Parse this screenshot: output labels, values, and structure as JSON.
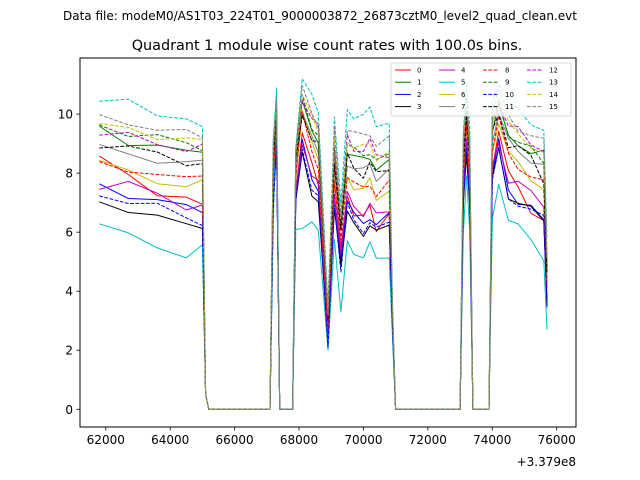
{
  "suptitle": "Data file: modeM0/AS1T03_224T01_9000003872_26873cztM0_level2_quad_clean.evt",
  "chart_data": {
    "type": "line",
    "title": "Quadrant 1 module wise count rates with 100.0s bins.",
    "xlabel": "",
    "ylabel": "",
    "x_offset_label": "+3.379e8",
    "xlim": [
      61200,
      76600
    ],
    "ylim": [
      -0.6,
      11.9
    ],
    "xticks": [
      62000,
      64000,
      66000,
      68000,
      70000,
      72000,
      74000,
      76000
    ],
    "xtick_labels": [
      "62000",
      "64000",
      "66000",
      "68000",
      "70000",
      "72000",
      "74000",
      "76000"
    ],
    "yticks": [
      0,
      2,
      4,
      6,
      8,
      10
    ],
    "ytick_labels": [
      "0",
      "2",
      "4",
      "6",
      "8",
      "10"
    ],
    "x": [
      61800,
      62700,
      63600,
      64500,
      65000,
      65100,
      65200,
      67100,
      67200,
      67300,
      67400,
      67500,
      67800,
      67900,
      68100,
      68400,
      68600,
      68900,
      69100,
      69300,
      69500,
      69700,
      70000,
      70200,
      70400,
      70800,
      70900,
      71000,
      73000,
      73100,
      73200,
      73300,
      73400,
      73500,
      73900,
      74000,
      74200,
      74500,
      74800,
      75200,
      75600,
      75700
    ],
    "series": [
      {
        "name": "0",
        "color": "#ff0000",
        "dash": "solid",
        "values": [
          8.4,
          8.0,
          7.4,
          7.1,
          6.8,
          0.5,
          0.0,
          0.0,
          7.5,
          9.7,
          0.0,
          0.0,
          0.0,
          7.5,
          9.3,
          8.2,
          7.7,
          2.6,
          7.6,
          5.4,
          7.4,
          6.6,
          6.4,
          6.9,
          6.2,
          6.6,
          3.0,
          0.0,
          0.0,
          7.6,
          9.6,
          7.5,
          0.0,
          0.0,
          0.0,
          8.3,
          9.4,
          7.9,
          7.6,
          6.8,
          6.3,
          3.8
        ]
      },
      {
        "name": "1",
        "color": "#008000",
        "dash": "solid",
        "values": [
          9.5,
          9.1,
          9.0,
          8.6,
          8.7,
          0.5,
          0.0,
          0.0,
          8.5,
          10.3,
          0.0,
          0.0,
          0.0,
          8.6,
          10.3,
          9.4,
          9.2,
          3.2,
          8.7,
          6.2,
          8.8,
          8.5,
          8.4,
          8.6,
          8.2,
          8.3,
          3.4,
          0.0,
          0.0,
          8.6,
          10.1,
          8.6,
          0.0,
          0.0,
          0.0,
          9.5,
          10.2,
          9.2,
          9.1,
          8.7,
          8.6,
          4.8
        ]
      },
      {
        "name": "2",
        "color": "#0000ff",
        "dash": "solid",
        "values": [
          7.7,
          7.3,
          7.0,
          6.8,
          6.8,
          0.5,
          0.0,
          0.0,
          7.1,
          9.2,
          0.0,
          0.0,
          0.0,
          7.2,
          9.0,
          7.9,
          7.5,
          2.2,
          7.2,
          5.2,
          7.1,
          6.5,
          6.3,
          6.6,
          6.2,
          6.5,
          2.9,
          0.0,
          0.0,
          7.3,
          9.2,
          7.1,
          0.0,
          0.0,
          0.0,
          7.9,
          9.0,
          7.5,
          7.1,
          6.8,
          6.3,
          3.6
        ]
      },
      {
        "name": "3",
        "color": "#000000",
        "dash": "solid",
        "values": [
          7.2,
          6.7,
          6.4,
          6.3,
          6.3,
          0.5,
          0.0,
          0.0,
          6.9,
          8.9,
          0.0,
          0.0,
          0.0,
          6.9,
          8.7,
          7.4,
          7.0,
          2.4,
          6.9,
          5.0,
          6.6,
          6.2,
          6.0,
          6.3,
          5.9,
          6.2,
          2.8,
          0.0,
          0.0,
          7.0,
          8.8,
          6.8,
          0.0,
          0.0,
          0.0,
          7.7,
          8.8,
          7.3,
          7.0,
          6.7,
          6.4,
          3.5
        ]
      },
      {
        "name": "4",
        "color": "#bf00bf",
        "dash": "solid",
        "values": [
          7.6,
          7.6,
          7.2,
          6.9,
          7.0,
          0.5,
          0.0,
          0.0,
          7.3,
          9.3,
          0.0,
          0.0,
          0.0,
          7.3,
          9.1,
          8.0,
          7.6,
          2.5,
          7.4,
          5.3,
          7.2,
          6.9,
          6.7,
          6.9,
          6.5,
          6.8,
          3.0,
          0.0,
          0.0,
          7.4,
          9.2,
          7.3,
          0.0,
          0.0,
          0.0,
          8.1,
          9.1,
          7.8,
          7.6,
          7.3,
          7.0,
          4.1
        ]
      },
      {
        "name": "5",
        "color": "#00bfbf",
        "dash": "solid",
        "values": [
          6.3,
          5.8,
          5.5,
          5.3,
          5.5,
          0.5,
          0.0,
          0.0,
          6.0,
          10.8,
          0.0,
          0.0,
          0.0,
          6.1,
          6.3,
          6.3,
          5.9,
          2.0,
          5.9,
          3.3,
          5.6,
          5.4,
          5.2,
          5.5,
          5.1,
          5.3,
          2.5,
          0.0,
          0.0,
          6.1,
          7.8,
          5.9,
          0.0,
          0.0,
          0.0,
          6.4,
          7.8,
          6.4,
          6.1,
          5.8,
          5.2,
          2.7
        ]
      },
      {
        "name": "6",
        "color": "#bfbf00",
        "dash": "solid",
        "values": [
          8.3,
          8.0,
          7.8,
          7.6,
          7.6,
          0.5,
          0.0,
          0.0,
          7.9,
          9.8,
          0.0,
          0.0,
          0.0,
          7.9,
          10.2,
          8.9,
          8.4,
          2.9,
          8.1,
          6.0,
          7.9,
          7.6,
          7.4,
          7.7,
          7.2,
          7.5,
          3.2,
          0.0,
          0.0,
          8.0,
          9.8,
          7.9,
          0.0,
          0.0,
          0.0,
          8.8,
          9.8,
          8.6,
          8.3,
          7.9,
          7.5,
          4.4
        ]
      },
      {
        "name": "7",
        "color": "#808080",
        "dash": "solid",
        "values": [
          8.8,
          8.7,
          8.5,
          8.3,
          8.3,
          0.5,
          0.0,
          0.0,
          8.4,
          10.0,
          0.0,
          0.0,
          0.0,
          8.4,
          10.0,
          9.1,
          8.8,
          3.0,
          8.6,
          6.0,
          8.4,
          8.2,
          8.0,
          8.3,
          7.9,
          8.1,
          3.3,
          0.0,
          0.0,
          8.4,
          10.0,
          8.4,
          0.0,
          0.0,
          0.0,
          9.2,
          10.0,
          9.0,
          8.8,
          8.5,
          8.2,
          4.6
        ]
      },
      {
        "name": "8",
        "color": "#ff0000",
        "dash": "dashed",
        "values": [
          8.3,
          8.2,
          8.0,
          7.7,
          7.9,
          0.5,
          0.0,
          0.0,
          8.0,
          9.8,
          0.0,
          0.0,
          0.0,
          8.0,
          9.9,
          8.7,
          8.3,
          2.8,
          8.1,
          5.8,
          8.0,
          7.6,
          7.4,
          7.7,
          7.3,
          7.6,
          3.2,
          0.0,
          0.0,
          8.0,
          9.8,
          7.9,
          0.0,
          0.0,
          0.0,
          8.8,
          9.8,
          8.6,
          8.3,
          7.9,
          7.6,
          4.3
        ]
      },
      {
        "name": "9",
        "color": "#008000",
        "dash": "dashed",
        "values": [
          9.7,
          9.4,
          9.2,
          8.9,
          8.9,
          0.5,
          0.0,
          0.0,
          8.7,
          10.4,
          0.0,
          0.0,
          0.0,
          8.7,
          10.5,
          9.6,
          9.4,
          3.3,
          8.9,
          6.3,
          9.0,
          8.7,
          8.6,
          8.8,
          8.4,
          8.5,
          3.5,
          0.0,
          0.0,
          8.7,
          10.2,
          8.8,
          0.0,
          0.0,
          0.0,
          9.6,
          10.3,
          9.3,
          9.2,
          8.8,
          8.2,
          4.9
        ]
      },
      {
        "name": "10",
        "color": "#0000ff",
        "dash": "dashed",
        "values": [
          7.4,
          7.0,
          6.8,
          6.5,
          6.4,
          0.5,
          0.0,
          0.0,
          6.9,
          9.0,
          0.0,
          0.0,
          0.0,
          6.9,
          8.8,
          7.6,
          7.2,
          2.1,
          7.0,
          4.8,
          6.9,
          6.3,
          6.1,
          6.4,
          6.0,
          6.3,
          2.8,
          0.0,
          0.0,
          7.1,
          9.0,
          6.9,
          0.0,
          0.0,
          0.0,
          7.6,
          8.8,
          7.3,
          6.9,
          6.6,
          6.6,
          3.4
        ]
      },
      {
        "name": "11",
        "color": "#000000",
        "dash": "dashed",
        "values": [
          9.0,
          8.8,
          8.6,
          8.4,
          8.4,
          0.5,
          0.0,
          0.0,
          8.3,
          10.1,
          0.0,
          0.0,
          0.0,
          8.3,
          10.1,
          9.2,
          8.9,
          3.0,
          8.5,
          6.1,
          8.5,
          8.2,
          8.0,
          8.3,
          7.9,
          8.2,
          3.3,
          0.0,
          0.0,
          8.4,
          10.0,
          8.4,
          0.0,
          0.0,
          0.0,
          9.3,
          10.1,
          9.0,
          8.8,
          8.5,
          7.8,
          4.7
        ]
      },
      {
        "name": "12",
        "color": "#bf00bf",
        "dash": "dashed",
        "values": [
          9.3,
          9.2,
          9.0,
          8.9,
          8.9,
          0.5,
          0.0,
          0.0,
          8.8,
          10.5,
          0.0,
          0.0,
          0.0,
          8.8,
          10.6,
          9.8,
          9.5,
          3.2,
          9.1,
          6.4,
          9.2,
          8.9,
          8.8,
          9.0,
          8.6,
          8.7,
          3.5,
          0.0,
          0.0,
          8.9,
          10.4,
          9.0,
          0.0,
          0.0,
          0.0,
          9.8,
          10.5,
          9.6,
          9.4,
          9.0,
          8.9,
          5.0
        ]
      },
      {
        "name": "13",
        "color": "#00bfbf",
        "dash": "dashed",
        "values": [
          10.3,
          10.4,
          10.1,
          9.9,
          9.4,
          0.5,
          0.0,
          0.0,
          9.0,
          10.8,
          0.0,
          0.0,
          0.0,
          9.0,
          11.2,
          10.5,
          10.0,
          3.5,
          9.9,
          6.8,
          10.2,
          10.0,
          9.9,
          10.1,
          9.7,
          9.8,
          3.8,
          0.0,
          0.0,
          9.4,
          10.9,
          9.6,
          0.0,
          0.0,
          0.0,
          10.5,
          11.0,
          10.3,
          10.1,
          9.8,
          9.5,
          5.6
        ]
      },
      {
        "name": "14",
        "color": "#bfbf00",
        "dash": "dashed",
        "values": [
          9.5,
          9.6,
          9.3,
          9.1,
          9.0,
          0.5,
          0.0,
          0.0,
          8.8,
          10.5,
          0.0,
          0.0,
          0.0,
          8.8,
          10.6,
          9.8,
          9.5,
          3.2,
          9.1,
          6.4,
          9.2,
          8.9,
          8.8,
          9.0,
          8.6,
          8.7,
          3.5,
          0.0,
          0.0,
          8.9,
          10.4,
          9.0,
          0.0,
          0.0,
          0.0,
          9.8,
          10.5,
          9.6,
          9.4,
          9.0,
          8.6,
          5.0
        ]
      },
      {
        "name": "15",
        "color": "#808080",
        "dash": "dashed",
        "values": [
          9.9,
          9.8,
          9.5,
          9.3,
          9.2,
          0.5,
          0.0,
          0.0,
          8.9,
          10.6,
          0.0,
          0.0,
          0.0,
          8.9,
          10.8,
          10.0,
          9.7,
          3.3,
          9.4,
          6.6,
          9.6,
          9.3,
          9.2,
          9.4,
          9.0,
          9.1,
          3.6,
          0.0,
          0.0,
          9.1,
          10.6,
          9.3,
          0.0,
          0.0,
          0.0,
          10.1,
          10.7,
          9.9,
          9.6,
          9.3,
          9.0,
          5.2
        ]
      }
    ],
    "legend": {
      "location": "top-right",
      "columns": 4
    }
  }
}
